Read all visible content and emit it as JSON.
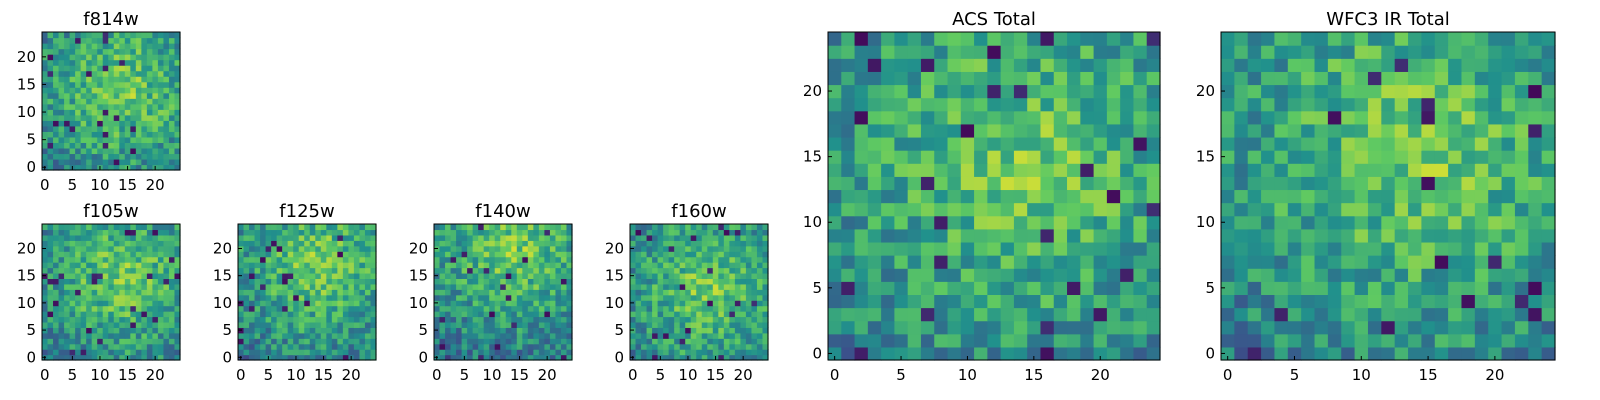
{
  "chart_data": [
    {
      "id": "f814w",
      "type": "heatmap",
      "title": "f814w",
      "xlim": [
        0,
        25
      ],
      "ylim": [
        0,
        25
      ],
      "xticks": [
        "0",
        "5",
        "10",
        "15",
        "20"
      ],
      "yticks": [
        "0",
        "5",
        "10",
        "15",
        "20"
      ],
      "colormap": "viridis",
      "seed": 11,
      "vmin": 0,
      "vmax": 1
    },
    {
      "id": "f105w",
      "type": "heatmap",
      "title": "f105w",
      "xlim": [
        0,
        25
      ],
      "ylim": [
        0,
        25
      ],
      "xticks": [
        "0",
        "5",
        "10",
        "15",
        "20"
      ],
      "yticks": [
        "0",
        "5",
        "10",
        "15",
        "20"
      ],
      "colormap": "viridis",
      "seed": 23,
      "vmin": 0,
      "vmax": 1
    },
    {
      "id": "f125w",
      "type": "heatmap",
      "title": "f125w",
      "xlim": [
        0,
        25
      ],
      "ylim": [
        0,
        25
      ],
      "xticks": [
        "0",
        "5",
        "10",
        "15",
        "20"
      ],
      "yticks": [
        "0",
        "5",
        "10",
        "15",
        "20"
      ],
      "colormap": "viridis",
      "seed": 37,
      "vmin": 0,
      "vmax": 1
    },
    {
      "id": "f140w",
      "type": "heatmap",
      "title": "f140w",
      "xlim": [
        0,
        25
      ],
      "ylim": [
        0,
        25
      ],
      "xticks": [
        "0",
        "5",
        "10",
        "15",
        "20"
      ],
      "yticks": [
        "0",
        "5",
        "10",
        "15",
        "20"
      ],
      "colormap": "viridis",
      "seed": 41,
      "vmin": 0,
      "vmax": 1
    },
    {
      "id": "f160w",
      "type": "heatmap",
      "title": "f160w",
      "xlim": [
        0,
        25
      ],
      "ylim": [
        0,
        25
      ],
      "xticks": [
        "0",
        "5",
        "10",
        "15",
        "20"
      ],
      "yticks": [
        "0",
        "5",
        "10",
        "15",
        "20"
      ],
      "colormap": "viridis",
      "seed": 53,
      "vmin": 0,
      "vmax": 1
    },
    {
      "id": "acs-total",
      "type": "heatmap",
      "title": "ACS Total",
      "xlim": [
        0,
        25
      ],
      "ylim": [
        0,
        25
      ],
      "xticks": [
        "0",
        "5",
        "10",
        "15",
        "20"
      ],
      "yticks": [
        "0",
        "5",
        "10",
        "15",
        "20"
      ],
      "colormap": "viridis",
      "seed": 67,
      "vmin": 0,
      "vmax": 1
    },
    {
      "id": "wfc3-ir-total",
      "type": "heatmap",
      "title": "WFC3 IR Total",
      "xlim": [
        0,
        25
      ],
      "ylim": [
        0,
        25
      ],
      "xticks": [
        "0",
        "5",
        "10",
        "15",
        "20"
      ],
      "yticks": [
        "0",
        "5",
        "10",
        "15",
        "20"
      ],
      "colormap": "viridis",
      "seed": 79,
      "vmin": 0,
      "vmax": 1
    }
  ],
  "colormap_stops": [
    "#440154",
    "#3b528b",
    "#21918c",
    "#5ec962",
    "#fde725"
  ]
}
